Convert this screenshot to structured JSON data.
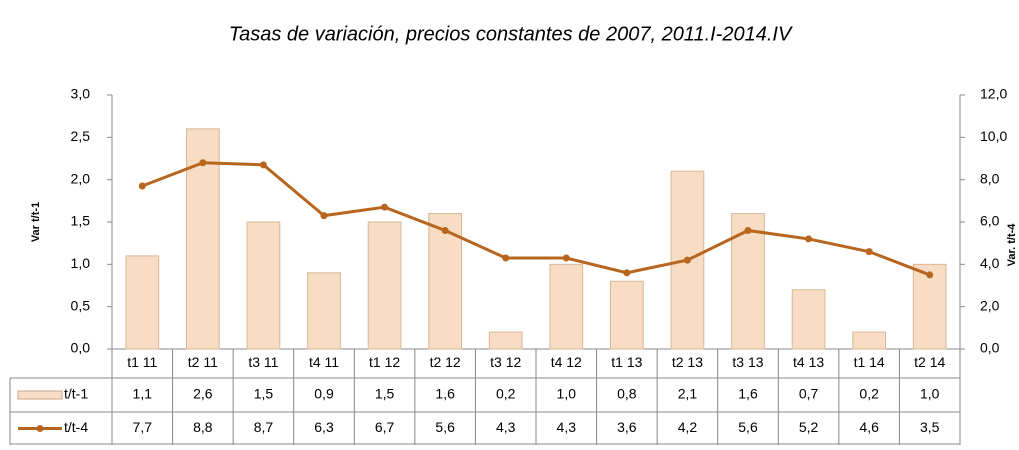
{
  "chart_data": {
    "type": "bar-line",
    "title": "Tasas de variación, precios constantes de 2007, 2011.I-2014.IV",
    "ylabel": "Var t/t-1",
    "y2label": "Var. t/t-4",
    "categories": [
      "t1 11",
      "t2 11",
      "t3 11",
      "t4 11",
      "t1 12",
      "t2 12",
      "t3 12",
      "t4 12",
      "t1 13",
      "t2 13",
      "t3 13",
      "t4 13",
      "t1 14",
      "t2 14"
    ],
    "series": [
      {
        "name": "t/t-1",
        "type": "bar",
        "color": "#f8dcc3",
        "axis": "y",
        "values": [
          1.1,
          2.6,
          1.5,
          0.9,
          1.5,
          1.6,
          0.2,
          1.0,
          0.8,
          2.1,
          1.6,
          0.7,
          0.2,
          1.0
        ],
        "value_labels": [
          "1,1",
          "2,6",
          "1,5",
          "0,9",
          "1,5",
          "1,6",
          "0,2",
          "1,0",
          "0,8",
          "2,1",
          "1,6",
          "0,7",
          "0,2",
          "1,0"
        ]
      },
      {
        "name": "t/t-4",
        "type": "line",
        "color": "#b8651f",
        "axis": "y2",
        "values": [
          7.7,
          8.8,
          8.7,
          6.3,
          6.7,
          5.6,
          4.3,
          4.3,
          3.6,
          4.2,
          5.6,
          5.2,
          4.6,
          3.5
        ],
        "value_labels": [
          "7,7",
          "8,8",
          "8,7",
          "6,3",
          "6,7",
          "5,6",
          "4,3",
          "4,3",
          "3,6",
          "4,2",
          "5,6",
          "5,2",
          "4,6",
          "3,5"
        ]
      }
    ],
    "ylim": [
      0,
      3
    ],
    "yticks": [
      {
        "value": 0,
        "label": "0,0"
      },
      {
        "value": 0.5,
        "label": "0,5"
      },
      {
        "value": 1,
        "label": "1,0"
      },
      {
        "value": 1.5,
        "label": "1,5"
      },
      {
        "value": 2,
        "label": "2,0"
      },
      {
        "value": 2.5,
        "label": "2,5"
      },
      {
        "value": 3,
        "label": "3,0"
      }
    ],
    "y2lim": [
      0,
      12
    ],
    "y2ticks": [
      {
        "value": 0,
        "label": "0,0"
      },
      {
        "value": 2,
        "label": "2,0"
      },
      {
        "value": 4,
        "label": "4,0"
      },
      {
        "value": 6,
        "label": "6,0"
      },
      {
        "value": 8,
        "label": "8,0"
      },
      {
        "value": 10,
        "label": "10,0"
      },
      {
        "value": 12,
        "label": "12,0"
      }
    ]
  }
}
